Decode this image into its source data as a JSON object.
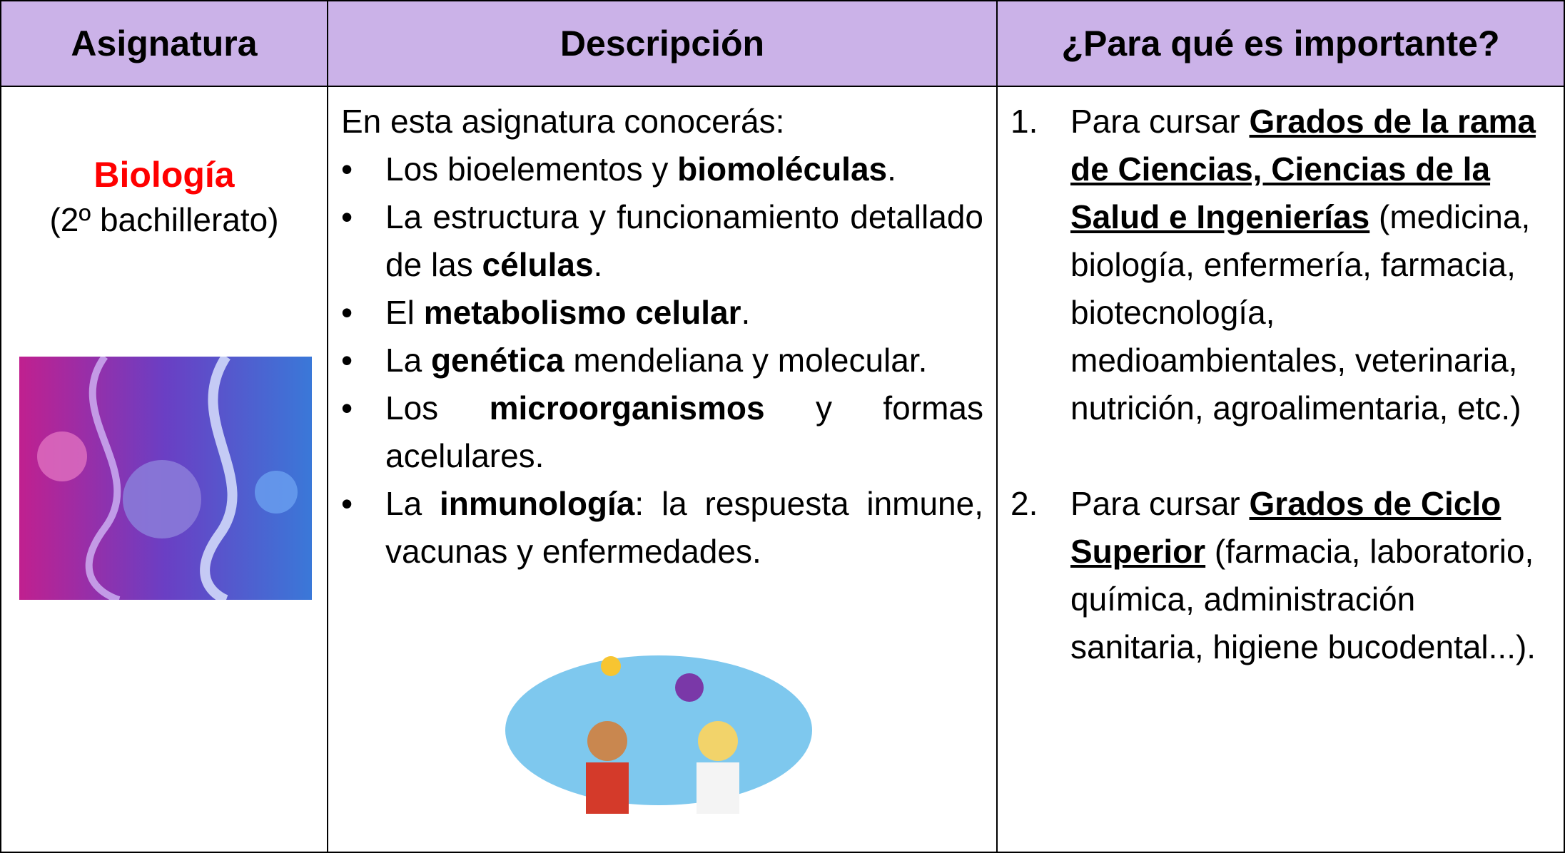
{
  "header": [
    "Asignatura",
    "Descripción",
    "¿Para qué es importante?"
  ],
  "subject": {
    "name": "Biología",
    "level": "(2º bachillerato)"
  },
  "description": {
    "intro": "En esta asignatura conocerás:",
    "items": [
      [
        {
          "t": "Los bioelementos y "
        },
        {
          "t": "biomoléculas",
          "b": true
        },
        {
          "t": "."
        }
      ],
      [
        {
          "t": "La estructura y funcionamiento detallado de las "
        },
        {
          "t": "células",
          "b": true
        },
        {
          "t": "."
        }
      ],
      [
        {
          "t": "El "
        },
        {
          "t": "metabolismo celular",
          "b": true
        },
        {
          "t": "."
        }
      ],
      [
        {
          "t": "La "
        },
        {
          "t": "genética",
          "b": true
        },
        {
          "t": " mendeliana y molecular."
        }
      ],
      [
        {
          "t": "Los "
        },
        {
          "t": "microorganismos",
          "b": true
        },
        {
          "t": " y formas acelulares."
        }
      ],
      [
        {
          "t": "La "
        },
        {
          "t": "inmunología",
          "b": true
        },
        {
          "t": ": la respuesta inmune, vacunas y enfermedades."
        }
      ]
    ]
  },
  "importance": [
    {
      "marker": "1.",
      "runs": [
        {
          "t": "Para cursar "
        },
        {
          "t": "Grados de la rama de Ciencias, Ciencias de la Salud e Ingenierías",
          "b": true,
          "u": true
        },
        {
          "t": " (medicina, biología, enfermería, farmacia, biotecnología, medioambientales, veterinaria, nutrición, agroalimentaria, etc.)"
        }
      ]
    },
    {
      "marker": "2.",
      "runs": [
        {
          "t": "Para cursar "
        },
        {
          "t": "Grados de Ciclo Superior",
          "b": true,
          "u": true
        },
        {
          "t": " (farmacia, laboratorio, química, administración sanitaria, higiene bucodental...)."
        }
      ]
    }
  ]
}
